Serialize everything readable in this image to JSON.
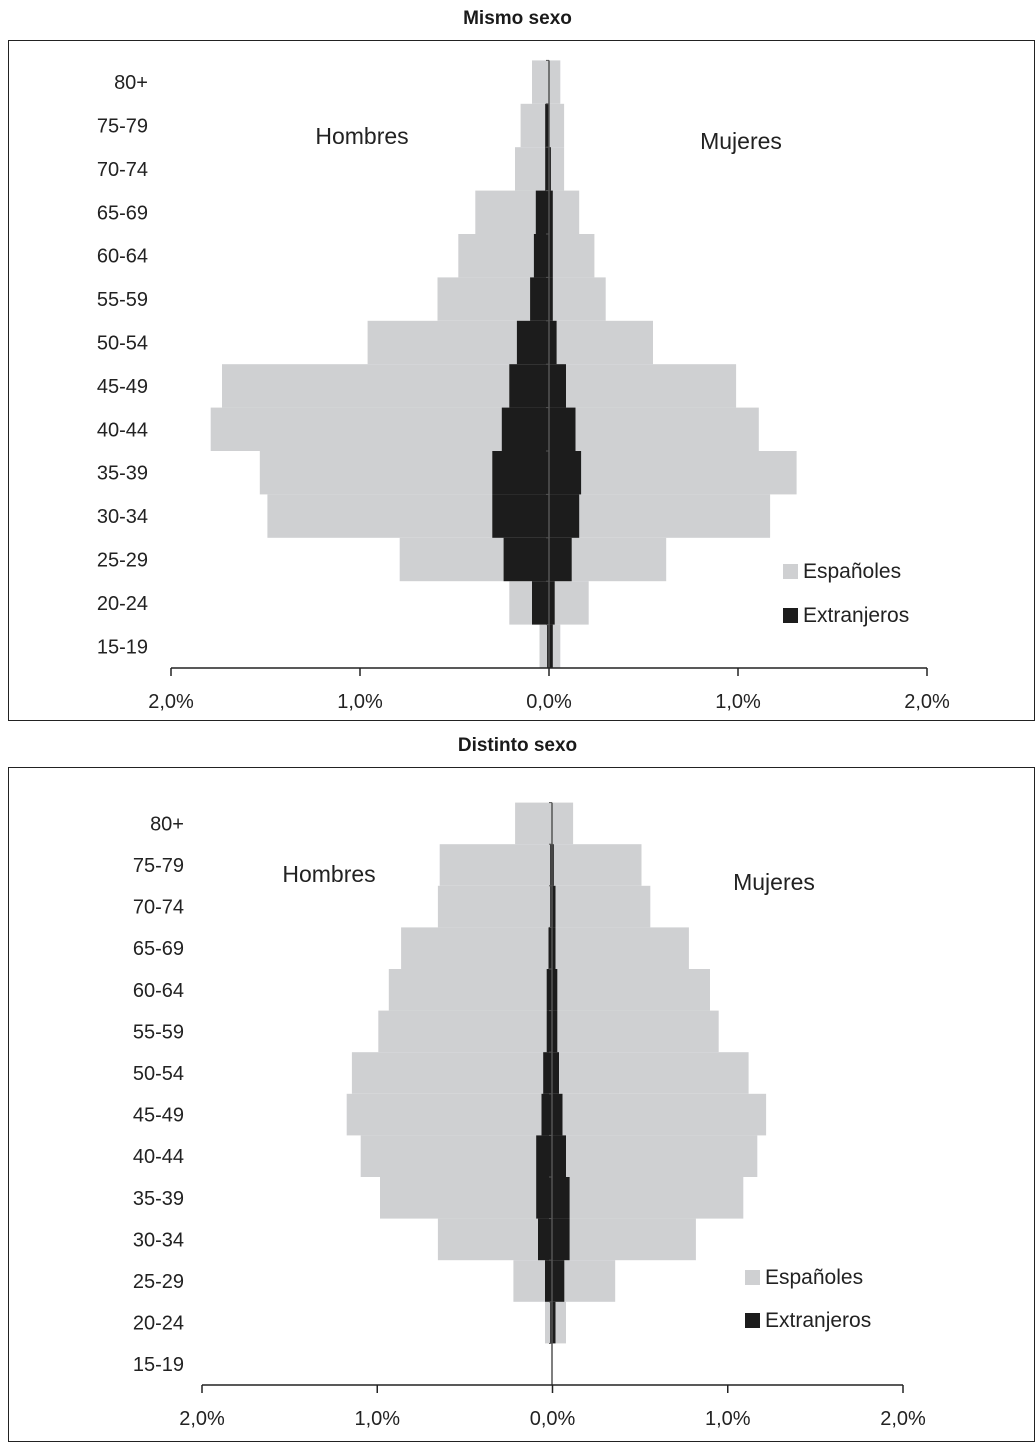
{
  "chart_data": [
    {
      "type": "bar",
      "orientation": "horizontal-pyramid",
      "title": "Mismo sexo",
      "left_label": "Hombres",
      "right_label": "Mujeres",
      "categories": [
        "15-19",
        "20-24",
        "25-29",
        "30-34",
        "35-39",
        "40-44",
        "45-49",
        "50-54",
        "55-59",
        "60-64",
        "65-69",
        "70-74",
        "75-79",
        "80+"
      ],
      "x_ticks": [
        "2,0%",
        "1,0%",
        "0,0%",
        "1,0%",
        "2,0%"
      ],
      "xlim": [
        -2.0,
        2.0
      ],
      "legend": [
        "Españoles",
        "Extranjeros"
      ],
      "legend_position": "bottom-right",
      "colors": {
        "espanoles": "#cfd0d2",
        "extranjeros": "#1c1c1c"
      },
      "series": [
        {
          "name": "Españoles",
          "side": "Hombres",
          "values": [
            0.05,
            0.21,
            0.79,
            1.49,
            1.53,
            1.79,
            1.73,
            0.96,
            0.59,
            0.48,
            0.39,
            0.18,
            0.15,
            0.09
          ]
        },
        {
          "name": "Españoles",
          "side": "Mujeres",
          "values": [
            0.06,
            0.21,
            0.62,
            1.17,
            1.31,
            1.11,
            0.99,
            0.55,
            0.3,
            0.24,
            0.16,
            0.08,
            0.08,
            0.06
          ]
        },
        {
          "name": "Extranjeros",
          "side": "Hombres",
          "values": [
            0.01,
            0.09,
            0.24,
            0.3,
            0.3,
            0.25,
            0.21,
            0.17,
            0.1,
            0.08,
            0.07,
            0.02,
            0.02,
            0.0
          ]
        },
        {
          "name": "Extranjeros",
          "side": "Mujeres",
          "values": [
            0.02,
            0.03,
            0.12,
            0.16,
            0.17,
            0.14,
            0.09,
            0.04,
            0.02,
            0.02,
            0.02,
            0.01,
            0.0,
            0.0
          ]
        }
      ]
    },
    {
      "type": "bar",
      "orientation": "horizontal-pyramid",
      "title": "Distinto sexo",
      "left_label": "Hombres",
      "right_label": "Mujeres",
      "categories": [
        "15-19",
        "20-24",
        "25-29",
        "30-34",
        "35-39",
        "40-44",
        "45-49",
        "50-54",
        "55-59",
        "60-64",
        "65-69",
        "70-74",
        "75-79",
        "80+"
      ],
      "x_ticks": [
        "2,0%",
        "1,0%",
        "0,0%",
        "1,0%",
        "2,0%"
      ],
      "xlim": [
        -2.0,
        2.0
      ],
      "legend": [
        "Españoles",
        "Extranjeros"
      ],
      "legend_position": "bottom-right",
      "colors": {
        "espanoles": "#cfd0d2",
        "extranjeros": "#1c1c1c"
      },
      "series": [
        {
          "name": "Españoles",
          "side": "Hombres",
          "values": [
            0.0,
            0.04,
            0.22,
            0.65,
            0.98,
            1.09,
            1.17,
            1.14,
            0.99,
            0.93,
            0.86,
            0.65,
            0.64,
            0.21
          ]
        },
        {
          "name": "Españoles",
          "side": "Mujeres",
          "values": [
            0.0,
            0.08,
            0.36,
            0.82,
            1.09,
            1.17,
            1.22,
            1.12,
            0.95,
            0.9,
            0.78,
            0.56,
            0.51,
            0.12
          ]
        },
        {
          "name": "Extranjeros",
          "side": "Hombres",
          "values": [
            0.0,
            0.01,
            0.04,
            0.08,
            0.09,
            0.09,
            0.06,
            0.05,
            0.03,
            0.03,
            0.02,
            0.01,
            0.01,
            0.0
          ]
        },
        {
          "name": "Extranjeros",
          "side": "Mujeres",
          "values": [
            0.0,
            0.02,
            0.07,
            0.1,
            0.1,
            0.08,
            0.06,
            0.04,
            0.03,
            0.03,
            0.02,
            0.02,
            0.01,
            0.0
          ]
        }
      ]
    }
  ]
}
